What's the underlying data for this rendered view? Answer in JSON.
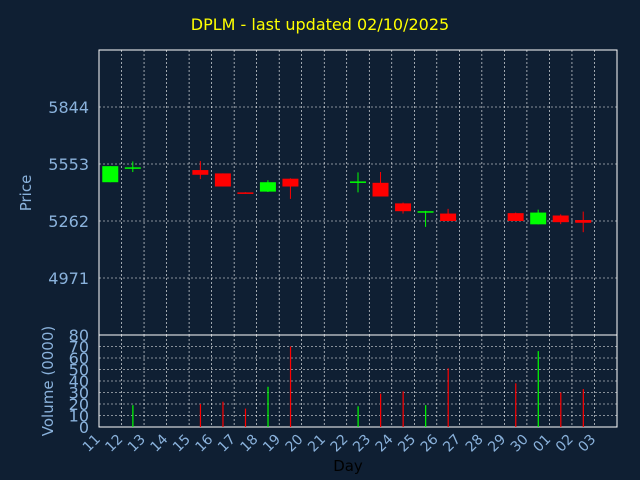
{
  "chart_data": [
    {
      "type": "candlestick",
      "title": "DPLM - last updated 02/10/2025",
      "ylabel": "Price",
      "yticks": [
        4971,
        5262,
        5553,
        5844
      ],
      "x_labels": [
        "11",
        "12",
        "13",
        "14",
        "15",
        "16",
        "17",
        "18",
        "19",
        "20",
        "21",
        "22",
        "23",
        "24",
        "25",
        "26",
        "27",
        "28",
        "29",
        "30",
        "01",
        "02",
        "03"
      ],
      "grid": true,
      "colors": {
        "up": "#00ff00",
        "down": "#ff0000",
        "background": "#0f1f33",
        "grid": "#ffffff",
        "title": "#ffff00",
        "labels": "#8ab2dc"
      },
      "candles": [
        {
          "day": "11",
          "open": 5460,
          "high": 5542,
          "low": 5460,
          "close": 5542
        },
        {
          "day": "12",
          "open": 5532,
          "high": 5566,
          "low": 5512,
          "close": 5536
        },
        {
          "day": "15",
          "open": 5522,
          "high": 5568,
          "low": 5476,
          "close": 5498
        },
        {
          "day": "16",
          "open": 5505,
          "high": 5505,
          "low": 5438,
          "close": 5438
        },
        {
          "day": "17",
          "open": 5408,
          "high": 5409,
          "low": 5404,
          "close": 5405
        },
        {
          "day": "18",
          "open": 5412,
          "high": 5470,
          "low": 5410,
          "close": 5460
        },
        {
          "day": "19",
          "open": 5478,
          "high": 5480,
          "low": 5375,
          "close": 5438
        },
        {
          "day": "22",
          "open": 5457,
          "high": 5510,
          "low": 5408,
          "close": 5464
        },
        {
          "day": "23",
          "open": 5457,
          "high": 5512,
          "low": 5387,
          "close": 5387
        },
        {
          "day": "24",
          "open": 5352,
          "high": 5356,
          "low": 5300,
          "close": 5312
        },
        {
          "day": "25",
          "open": 5305,
          "high": 5314,
          "low": 5232,
          "close": 5312
        },
        {
          "day": "26",
          "open": 5300,
          "high": 5324,
          "low": 5262,
          "close": 5262
        },
        {
          "day": "29",
          "open": 5302,
          "high": 5305,
          "low": 5262,
          "close": 5262
        },
        {
          "day": "30",
          "open": 5245,
          "high": 5320,
          "low": 5245,
          "close": 5305
        },
        {
          "day": "01",
          "open": 5290,
          "high": 5296,
          "low": 5246,
          "close": 5256
        },
        {
          "day": "02",
          "open": 5267,
          "high": 5310,
          "low": 5205,
          "close": 5253
        }
      ]
    },
    {
      "type": "bar",
      "ylabel": "Volume (0000)",
      "xlabel": "Day",
      "yticks": [
        0,
        10,
        20,
        30,
        40,
        50,
        60,
        70,
        80
      ],
      "ylim": [
        0,
        80
      ],
      "x_labels": [
        "11",
        "12",
        "13",
        "14",
        "15",
        "16",
        "17",
        "18",
        "19",
        "20",
        "21",
        "22",
        "23",
        "24",
        "25",
        "26",
        "27",
        "28",
        "29",
        "30",
        "01",
        "02",
        "03"
      ],
      "bars": [
        {
          "day": "12",
          "value": 19,
          "color": "#00ff00"
        },
        {
          "day": "15",
          "value": 20,
          "color": "#ff0000"
        },
        {
          "day": "16",
          "value": 22,
          "color": "#ff0000"
        },
        {
          "day": "17",
          "value": 16,
          "color": "#ff0000"
        },
        {
          "day": "18",
          "value": 35,
          "color": "#00ff00"
        },
        {
          "day": "19",
          "value": 70,
          "color": "#ff0000"
        },
        {
          "day": "22",
          "value": 18,
          "color": "#00ff00"
        },
        {
          "day": "23",
          "value": 29,
          "color": "#ff0000"
        },
        {
          "day": "24",
          "value": 31,
          "color": "#ff0000"
        },
        {
          "day": "25",
          "value": 19,
          "color": "#00ff00"
        },
        {
          "day": "26",
          "value": 51,
          "color": "#ff0000"
        },
        {
          "day": "29",
          "value": 38,
          "color": "#ff0000"
        },
        {
          "day": "30",
          "value": 66,
          "color": "#00ff00"
        },
        {
          "day": "01",
          "value": 30,
          "color": "#ff0000"
        },
        {
          "day": "02",
          "value": 33,
          "color": "#ff0000"
        }
      ]
    }
  ]
}
